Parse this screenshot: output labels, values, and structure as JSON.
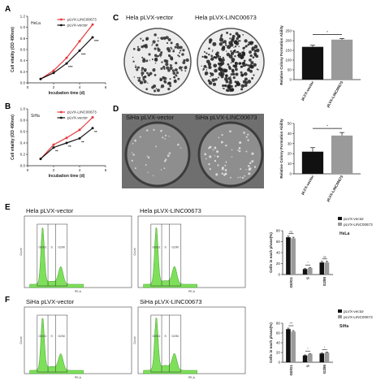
{
  "panels": {
    "A": "A",
    "B": "B",
    "C": "C",
    "D": "D",
    "E": "E",
    "F": "F"
  },
  "colors": {
    "red": "#e8383d",
    "black": "#111111",
    "gray_bar": "#9a9a9a",
    "flow_green": "#7ee05a",
    "dish_c": "#bfbfbf",
    "dish_d": "#8e8e8e"
  },
  "photos": {
    "C": {
      "left": "Hela pLVX-vector",
      "right": "Hela pLVX-LINC00673"
    },
    "D": {
      "left": "SiHa pLVX-vector",
      "right": "SiHa pLVX-LINC00673"
    }
  },
  "flow": {
    "E": {
      "left_title": "Hela pLVX-vector",
      "right_title": "Hela pLVX-LINC00673"
    },
    "F": {
      "left_title": "SiHa pLVX-vector",
      "right_title": "SiHa pLVX-LINC00673"
    },
    "gate_labels": [
      "G0/G1",
      "S",
      "G2/M"
    ],
    "ylabel": "Count",
    "xlabel": "PE-A"
  },
  "chart_data": [
    {
      "id": "A",
      "type": "line",
      "inset_label": "HeLa",
      "xlabel": "Incubation time (d)",
      "ylabel": "Cell vitality (OD 490nm)",
      "x": [
        1,
        2,
        3,
        4,
        5
      ],
      "xticks": [
        0,
        2,
        4,
        6
      ],
      "yticks": [
        0.0,
        0.2,
        0.4,
        0.6,
        0.8,
        1.0,
        1.2
      ],
      "xlim": [
        0,
        6
      ],
      "ylim": [
        0,
        1.2
      ],
      "series": [
        {
          "name": "pLVX-LINC00673",
          "color": "#e8383d",
          "values": [
            0.07,
            0.22,
            0.45,
            0.75,
            1.05
          ]
        },
        {
          "name": "pLVX-vector",
          "color": "#111111",
          "values": [
            0.07,
            0.18,
            0.35,
            0.58,
            0.82
          ]
        }
      ],
      "annotations": [
        {
          "x": 3,
          "text": "***"
        },
        {
          "x": 4,
          "text": "***"
        },
        {
          "x": 5,
          "text": "***"
        }
      ]
    },
    {
      "id": "B",
      "type": "line",
      "inset_label": "SiHa",
      "xlabel": "Incubation time (d)",
      "ylabel": "Cell vitality (OD 490nm)",
      "x": [
        1,
        2,
        3,
        4,
        5
      ],
      "xticks": [
        0,
        2,
        4,
        6
      ],
      "yticks": [
        0.0,
        0.2,
        0.4,
        0.6,
        0.8,
        1.0
      ],
      "xlim": [
        0,
        6
      ],
      "ylim": [
        0,
        1.0
      ],
      "series": [
        {
          "name": "pLVX-LINC00673",
          "color": "#e8383d",
          "values": [
            0.12,
            0.37,
            0.49,
            0.63,
            0.85
          ]
        },
        {
          "name": "pLVX-vector",
          "color": "#111111",
          "values": [
            0.12,
            0.32,
            0.4,
            0.48,
            0.66
          ]
        }
      ],
      "annotations": [
        {
          "x": 2,
          "text": "**"
        },
        {
          "x": 3,
          "text": "**"
        },
        {
          "x": 4,
          "text": "**"
        },
        {
          "x": 5,
          "text": "**"
        }
      ]
    },
    {
      "id": "C",
      "type": "bar",
      "ylabel": "Relative Colony Formation Ability",
      "categories": [
        "pLVX-vector",
        "pLVX-LINC00673"
      ],
      "values": [
        168,
        205
      ],
      "errors": [
        8,
        6
      ],
      "colors": [
        "#111111",
        "#9a9a9a"
      ],
      "yticks": [
        0,
        50,
        100,
        150,
        200,
        250
      ],
      "ylim": [
        0,
        250
      ],
      "sig": "*"
    },
    {
      "id": "D",
      "type": "bar",
      "ylabel": "Relative Colony Formation Ability",
      "categories": [
        "pLVX-vector",
        "pLVX-LINC00673"
      ],
      "values": [
        22,
        38
      ],
      "errors": [
        4,
        3
      ],
      "colors": [
        "#111111",
        "#9a9a9a"
      ],
      "yticks": [
        0,
        10,
        20,
        30,
        40,
        50
      ],
      "ylim": [
        0,
        50
      ],
      "sig": "*"
    },
    {
      "id": "E",
      "type": "bar",
      "inset_label": "HeLa",
      "ylabel": "Cells in each phase(%)",
      "categories": [
        "G0/G1",
        "S",
        "G2/M"
      ],
      "series": [
        {
          "name": "pLVX-vector",
          "color": "#111111",
          "values": [
            68,
            10,
            22
          ],
          "errors": [
            2,
            1,
            2
          ]
        },
        {
          "name": "pLVX-LINC00673",
          "color": "#9a9a9a",
          "values": [
            66,
            12,
            22
          ],
          "errors": [
            2,
            1,
            2
          ]
        }
      ],
      "yticks": [
        0,
        20,
        40,
        60,
        80
      ],
      "ylim": [
        0,
        80
      ],
      "sig": [
        "ns",
        "*",
        "ns"
      ]
    },
    {
      "id": "F",
      "type": "bar",
      "inset_label": "SiHa",
      "ylabel": "Cells in each phase(%)",
      "categories": [
        "G0/G1",
        "S",
        "G2/M"
      ],
      "series": [
        {
          "name": "pLVX-vector",
          "color": "#111111",
          "values": [
            68,
            14,
            18
          ],
          "errors": [
            2,
            1,
            1
          ]
        },
        {
          "name": "pLVX-LINC00673",
          "color": "#9a9a9a",
          "values": [
            63,
            17,
            20
          ],
          "errors": [
            2,
            1,
            1
          ]
        }
      ],
      "yticks": [
        0,
        20,
        40,
        60,
        80
      ],
      "ylim": [
        0,
        80
      ],
      "sig": [
        "***",
        "*",
        "*"
      ]
    }
  ]
}
